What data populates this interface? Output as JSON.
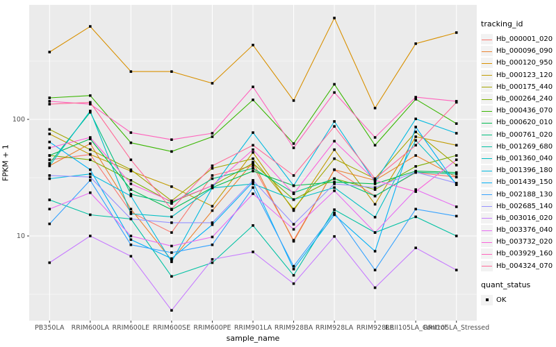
{
  "figure": {
    "background": "#FFFFFF",
    "panel_background": "#EBEBEB",
    "grid_color": "#FFFFFF",
    "tick_text_color": "#4D4D4D",
    "point_color": "#000000"
  },
  "x_axis": {
    "label": "sample_name"
  },
  "y_axis": {
    "label": "FPKM + 1",
    "tick_labels": [
      "100",
      "10"
    ]
  },
  "legend": {
    "tracking_title": "tracking_id",
    "quant_title": "quant_status",
    "quant_items": [
      {
        "label": "OK",
        "marker": "black-square-icon"
      }
    ]
  },
  "chart_data": {
    "type": "line",
    "title": "",
    "xlabel": "sample_name",
    "ylabel": "FPKM + 1",
    "yscale": "log10",
    "ylim": [
      1.9,
      900
    ],
    "y_major_ticks": [
      10,
      100
    ],
    "y_minor_ticks": [
      3.162,
      31.62,
      316.2
    ],
    "grid": true,
    "legend_position": "right",
    "point_marker": "filled-square-black",
    "quant_status": "OK",
    "categories": [
      "PB350LA",
      "RRIM600LA",
      "RRIM600LE",
      "RRIM600SE",
      "RRIM600PE",
      "RRIM901LA",
      "RRIM928BA",
      "RRIM928LA",
      "RRIM928LE",
      "RRII105LA_Control",
      "RRII105LA_Stressed"
    ],
    "series": [
      {
        "name": "Hb_000001_020",
        "color": "#F8766D",
        "values": [
          45,
          50,
          16,
          10.7,
          33,
          40,
          9.2,
          37,
          22,
          35,
          32
        ]
      },
      {
        "name": "Hb_000096_090",
        "color": "#EA8331",
        "values": [
          40,
          62,
          17,
          6.2,
          16.5,
          43,
          9,
          37,
          30,
          49,
          32
        ]
      },
      {
        "name": "Hb_000120_950",
        "color": "#D89000",
        "values": [
          378,
          627,
          257,
          257,
          204,
          434,
          145,
          740,
          125,
          446,
          555
        ]
      },
      {
        "name": "Hb_000123_120",
        "color": "#C09B00",
        "values": [
          75,
          50,
          36,
          26.5,
          18,
          52,
          16.5,
          55,
          18.7,
          71,
          60
        ]
      },
      {
        "name": "Hb_000175_440",
        "color": "#A3A500",
        "values": [
          82,
          55,
          37,
          20,
          38,
          46,
          17,
          46,
          31,
          78,
          40.5
        ]
      },
      {
        "name": "Hb_000264_240",
        "color": "#7CAE00",
        "values": [
          49,
          45,
          30,
          19.5,
          27,
          42,
          20.5,
          31,
          25,
          39.5,
          49
        ]
      },
      {
        "name": "Hb_000436_070",
        "color": "#39B600",
        "values": [
          153,
          160,
          63,
          53,
          71,
          147,
          62,
          200,
          60,
          149,
          92
        ]
      },
      {
        "name": "Hb_000620_010",
        "color": "#00BB4E",
        "values": [
          49,
          68,
          25,
          16.8,
          26,
          36,
          27,
          29,
          28,
          36,
          35
        ]
      },
      {
        "name": "Hb_000761_020",
        "color": "#00BF7D",
        "values": [
          42,
          115,
          22.8,
          19,
          31,
          38,
          23.5,
          31,
          22,
          35.3,
          34
        ]
      },
      {
        "name": "Hb_001269_680",
        "color": "#00C1A3",
        "values": [
          20.4,
          15.2,
          14,
          4.5,
          5.9,
          12.3,
          4.6,
          16.8,
          10.7,
          14.6,
          10
        ]
      },
      {
        "name": "Hb_001360_040",
        "color": "#00BFC4",
        "values": [
          40,
          118,
          15.5,
          14.6,
          25.8,
          28,
          20.5,
          26,
          14.5,
          66,
          28
        ]
      },
      {
        "name": "Hb_001396_180",
        "color": "#00BAE0",
        "values": [
          31,
          34,
          22,
          6,
          26,
          77,
          27,
          96,
          29,
          101,
          76
        ]
      },
      {
        "name": "Hb_001439_150",
        "color": "#00B0F6",
        "values": [
          64,
          37,
          9.3,
          6.4,
          12.5,
          29,
          5.2,
          15.2,
          7.4,
          86,
          27.5
        ]
      },
      {
        "name": "Hb_002188_130",
        "color": "#35A2FF",
        "values": [
          12.7,
          30,
          8.4,
          7.2,
          8.4,
          26,
          5.5,
          15.8,
          5.1,
          17,
          14.8
        ]
      },
      {
        "name": "Hb_002685_140",
        "color": "#9590FF",
        "values": [
          33,
          32,
          14,
          13,
          13,
          30,
          12.6,
          28,
          26,
          35.3,
          28.4
        ]
      },
      {
        "name": "Hb_003016_020",
        "color": "#C77CFF",
        "values": [
          5.9,
          10,
          6.7,
          2.3,
          6.3,
          7.3,
          3.9,
          9.9,
          3.6,
          7.9,
          5.1
        ]
      },
      {
        "name": "Hb_003376_040",
        "color": "#E76BF3",
        "values": [
          17,
          23.5,
          10,
          8.2,
          9.8,
          23,
          11.4,
          24.4,
          10.7,
          25,
          17.8
        ]
      },
      {
        "name": "Hb_003732_020",
        "color": "#FA62DB",
        "values": [
          57,
          70,
          28,
          19.8,
          27,
          55,
          23,
          65,
          30,
          24,
          45
        ]
      },
      {
        "name": "Hb_003929_160",
        "color": "#FF62BC",
        "values": [
          143,
          135,
          77,
          67,
          76,
          190,
          57,
          170,
          70,
          155,
          143
        ]
      },
      {
        "name": "Hb_004324_070",
        "color": "#FF6A98",
        "values": [
          135,
          140,
          45,
          17,
          40,
          60,
          33,
          87,
          31,
          60,
          140
        ]
      }
    ]
  }
}
